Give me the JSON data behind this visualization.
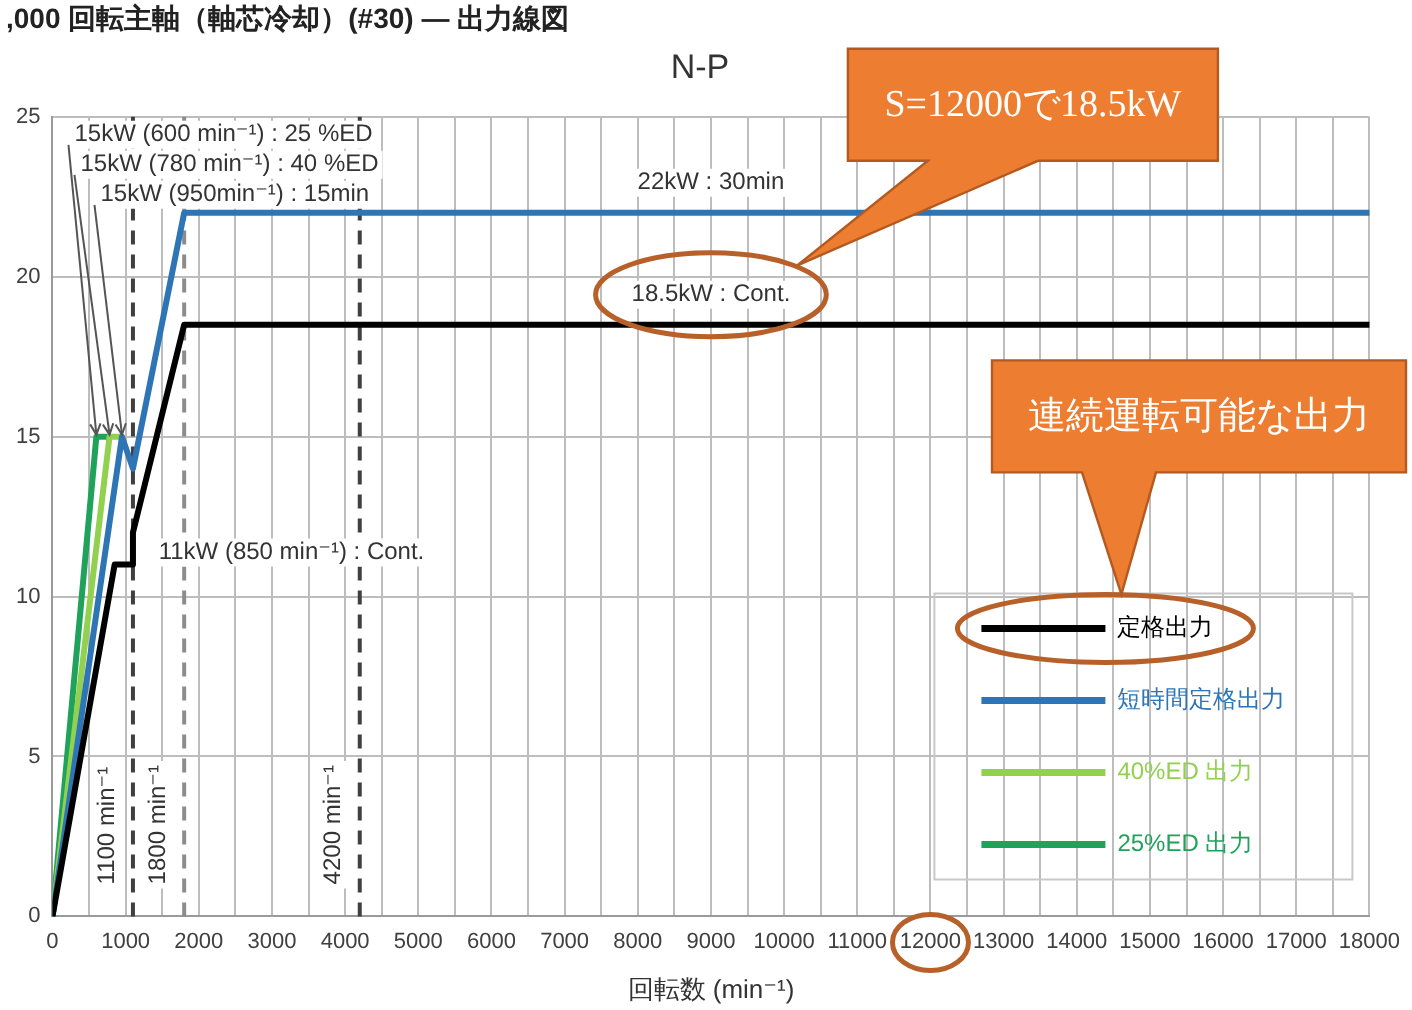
{
  "chart_data": {
    "type": "line",
    "title": ",000 回転主軸（軸芯冷却）(#30) — 出力線図",
    "subtitle": "N-P",
    "xlabel": "回転数 (min⁻¹)",
    "series": [
      {
        "name": "定格出力",
        "color": "#000000",
        "x": [
          0,
          850,
          1100,
          1100,
          1800,
          18000
        ],
        "values": [
          0,
          11,
          11,
          12,
          18.5,
          18.5
        ]
      },
      {
        "name": "短時間定格出力",
        "color": "#2e75b6",
        "x": [
          0,
          950,
          1100,
          1800,
          18000
        ],
        "values": [
          0,
          15,
          14,
          22,
          22
        ]
      },
      {
        "name": "40%ED 出力",
        "color": "#92d050",
        "x": [
          0,
          780,
          950
        ],
        "values": [
          0,
          15,
          15
        ]
      },
      {
        "name": "25%ED 出力",
        "color": "#1fa35a",
        "x": [
          0,
          600,
          780
        ],
        "values": [
          0,
          15,
          15
        ]
      }
    ],
    "xlim": [
      0,
      18000
    ],
    "xticks": [
      0,
      {
        "value": 500,
        "label": null
      },
      1000,
      {
        "value": 1500,
        "label": null
      },
      2000,
      {
        "value": 2500,
        "label": null
      },
      3000,
      {
        "value": 3500,
        "label": null
      },
      4000,
      {
        "value": 4500,
        "label": null
      },
      5000,
      {
        "value": 5500,
        "label": null
      },
      6000,
      {
        "value": 6500,
        "label": null
      },
      7000,
      {
        "value": 7500,
        "label": null
      },
      8000,
      {
        "value": 8500,
        "label": null
      },
      9000,
      {
        "value": 9500,
        "label": null
      },
      10000,
      {
        "value": 10500,
        "label": null
      },
      11000,
      {
        "value": 11500,
        "label": null
      },
      12000,
      {
        "value": 12500,
        "label": null
      },
      13000,
      {
        "value": 13500,
        "label": null
      },
      14000,
      {
        "value": 14500,
        "label": null
      },
      15000,
      {
        "value": 15500,
        "label": null
      },
      16000,
      {
        "value": 16500,
        "label": null
      },
      17000,
      {
        "value": 17500,
        "label": null
      },
      18000
    ],
    "ylim": [
      0,
      25
    ],
    "yticks": [
      0,
      5,
      10,
      15,
      20,
      25
    ],
    "grid": true,
    "legend": "bottom right",
    "ref_lines": [
      {
        "axis": "x",
        "value": 1100,
        "label": "1100 min⁻¹",
        "color": "#404040",
        "line_style": "dashed"
      },
      {
        "axis": "x",
        "value": 1800,
        "label": "1800 min⁻¹",
        "color": "#8c8c8c",
        "line_style": "dashed"
      },
      {
        "axis": "x",
        "value": 4200,
        "label": "4200 min⁻¹",
        "color": "#404040",
        "line_style": "dashed"
      }
    ],
    "annotations": [
      {
        "text": "15kW (600 min⁻¹) : 25 %ED",
        "x": 600,
        "y": 15
      },
      {
        "text": "15kW (780 min⁻¹) : 40 %ED",
        "x": 780,
        "y": 15
      },
      {
        "text": "15kW (950min⁻¹) : 15min",
        "x": 950,
        "y": 15
      },
      {
        "text": "22kW : 30min",
        "x": 9000,
        "y": 22
      },
      {
        "text": "18.5kW : Cont.",
        "x": 9000,
        "y": 18.5
      },
      {
        "text": "11kW (850 min⁻¹) : Cont.",
        "x": 850,
        "y": 11
      },
      "S=12000で18.5kW",
      "連続運転可能な出力"
    ]
  }
}
